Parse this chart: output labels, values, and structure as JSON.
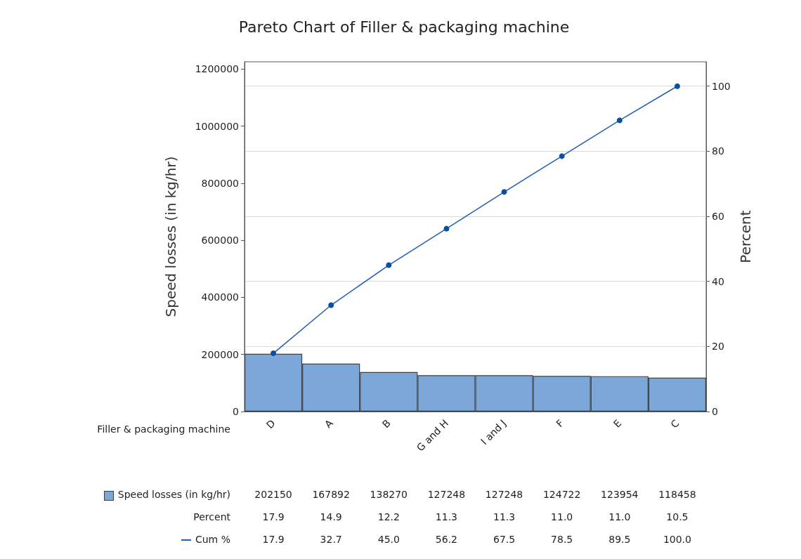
{
  "chart_data": {
    "type": "bar",
    "title": "Pareto Chart of Filler & packaging machine",
    "xlabel": "Filler & packaging machine",
    "ylabel": "Speed losses (in kg/hr)",
    "y2label": "Percent",
    "categories": [
      "D",
      "A",
      "B",
      "G and H",
      "I and J",
      "F",
      "E",
      "C"
    ],
    "series": [
      {
        "name": "Speed losses (in kg/hr)",
        "color": "#7ba7d9",
        "values": [
          202150,
          167892,
          138270,
          127248,
          127248,
          124722,
          123954,
          118458
        ],
        "value_labels": [
          "202150",
          "167892",
          "138270",
          "127248",
          "127248",
          "124722",
          "123954",
          "118458"
        ]
      },
      {
        "name": "Cum %",
        "type": "line",
        "axis": "y2",
        "color": "#1f5fb4",
        "values": [
          17.9,
          32.7,
          45.0,
          56.2,
          67.5,
          78.5,
          89.5,
          100.0
        ],
        "value_labels": [
          "17.9",
          "32.7",
          "45.0",
          "56.2",
          "67.5",
          "78.5",
          "89.5",
          "100.0"
        ]
      }
    ],
    "ylim": [
      0,
      1225400
    ],
    "yticks": [
      0,
      200000,
      400000,
      600000,
      800000,
      1000000,
      1200000
    ],
    "y2lim": [
      0,
      107.5
    ],
    "y2ticks": [
      0,
      20,
      40,
      60,
      80,
      100
    ],
    "annotations": [
      "Percent",
      "17.9",
      "14.9",
      "12.2",
      "11.3",
      "11.3",
      "11.0",
      "11.0",
      "10.5"
    ],
    "grid": true,
    "marker": "circle",
    "legend": "bottom left"
  }
}
